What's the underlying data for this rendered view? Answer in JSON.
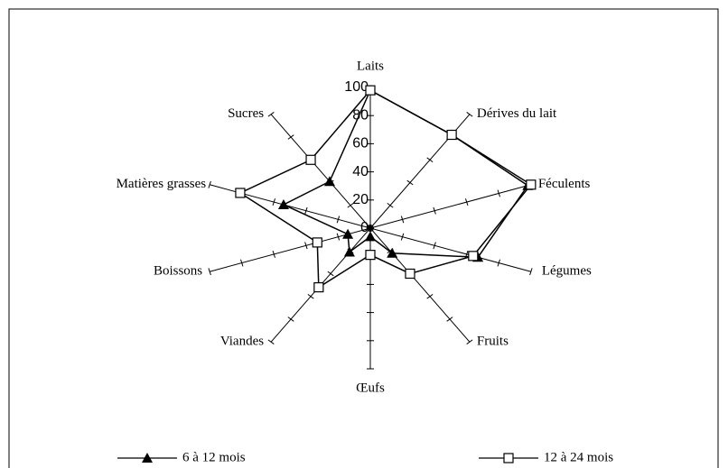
{
  "chart_data": {
    "type": "radar",
    "categories": [
      "Laits",
      "Dérives du lait",
      "Féculents",
      "Légumes",
      "Fruits",
      "Œufs",
      "Viandes",
      "Boissons",
      "Matières  grasses",
      "Sucres"
    ],
    "series": [
      {
        "name": "6 à 12 mois",
        "color": "#000000",
        "marker": "triangle",
        "values": [
          98,
          82,
          98,
          67,
          22,
          6,
          21,
          14,
          54,
          41
        ]
      },
      {
        "name": "12 à 24 mois",
        "color": "#000000",
        "marker": "square",
        "values": [
          98,
          82,
          100,
          64,
          40,
          19,
          52,
          33,
          81,
          60
        ]
      }
    ],
    "rlim": [
      0,
      100
    ],
    "rticks": [
      0,
      20,
      40,
      60,
      80,
      100
    ]
  }
}
